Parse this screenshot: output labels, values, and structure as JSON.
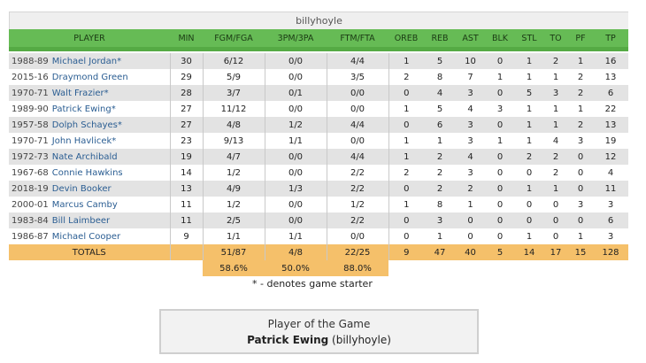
{
  "box_title": "billyhoyle",
  "headers": [
    "PLAYER",
    "MIN",
    "FGM/FGA",
    "3PM/3PA",
    "FTM/FTA",
    "OREB",
    "REB",
    "AST",
    "BLK",
    "STL",
    "TO",
    "PF",
    "TP"
  ],
  "players": [
    {
      "season": "1988-89",
      "name": "Michael Jordan*",
      "min": "30",
      "fg": "6/12",
      "tp3": "0/0",
      "ft": "4/4",
      "oreb": "1",
      "reb": "5",
      "ast": "10",
      "blk": "0",
      "stl": "1",
      "to": "2",
      "pf": "1",
      "tp": "16"
    },
    {
      "season": "2015-16",
      "name": "Draymond Green",
      "min": "29",
      "fg": "5/9",
      "tp3": "0/0",
      "ft": "3/5",
      "oreb": "2",
      "reb": "8",
      "ast": "7",
      "blk": "1",
      "stl": "1",
      "to": "1",
      "pf": "2",
      "tp": "13"
    },
    {
      "season": "1970-71",
      "name": "Walt Frazier*",
      "min": "28",
      "fg": "3/7",
      "tp3": "0/1",
      "ft": "0/0",
      "oreb": "0",
      "reb": "4",
      "ast": "3",
      "blk": "0",
      "stl": "5",
      "to": "3",
      "pf": "2",
      "tp": "6"
    },
    {
      "season": "1989-90",
      "name": "Patrick Ewing*",
      "min": "27",
      "fg": "11/12",
      "tp3": "0/0",
      "ft": "0/0",
      "oreb": "1",
      "reb": "5",
      "ast": "4",
      "blk": "3",
      "stl": "1",
      "to": "1",
      "pf": "1",
      "tp": "22"
    },
    {
      "season": "1957-58",
      "name": "Dolph Schayes*",
      "min": "27",
      "fg": "4/8",
      "tp3": "1/2",
      "ft": "4/4",
      "oreb": "0",
      "reb": "6",
      "ast": "3",
      "blk": "0",
      "stl": "1",
      "to": "1",
      "pf": "2",
      "tp": "13"
    },
    {
      "season": "1970-71",
      "name": "John Havlicek*",
      "min": "23",
      "fg": "9/13",
      "tp3": "1/1",
      "ft": "0/0",
      "oreb": "1",
      "reb": "1",
      "ast": "3",
      "blk": "1",
      "stl": "1",
      "to": "4",
      "pf": "3",
      "tp": "19"
    },
    {
      "season": "1972-73",
      "name": "Nate Archibald",
      "min": "19",
      "fg": "4/7",
      "tp3": "0/0",
      "ft": "4/4",
      "oreb": "1",
      "reb": "2",
      "ast": "4",
      "blk": "0",
      "stl": "2",
      "to": "2",
      "pf": "0",
      "tp": "12"
    },
    {
      "season": "1967-68",
      "name": "Connie Hawkins",
      "min": "14",
      "fg": "1/2",
      "tp3": "0/0",
      "ft": "2/2",
      "oreb": "2",
      "reb": "2",
      "ast": "3",
      "blk": "0",
      "stl": "0",
      "to": "2",
      "pf": "0",
      "tp": "4"
    },
    {
      "season": "2018-19",
      "name": "Devin Booker",
      "min": "13",
      "fg": "4/9",
      "tp3": "1/3",
      "ft": "2/2",
      "oreb": "0",
      "reb": "2",
      "ast": "2",
      "blk": "0",
      "stl": "1",
      "to": "1",
      "pf": "0",
      "tp": "11"
    },
    {
      "season": "2000-01",
      "name": "Marcus Camby",
      "min": "11",
      "fg": "1/2",
      "tp3": "0/0",
      "ft": "1/2",
      "oreb": "1",
      "reb": "8",
      "ast": "1",
      "blk": "0",
      "stl": "0",
      "to": "0",
      "pf": "3",
      "tp": "3"
    },
    {
      "season": "1983-84",
      "name": "Bill Laimbeer",
      "min": "11",
      "fg": "2/5",
      "tp3": "0/0",
      "ft": "2/2",
      "oreb": "0",
      "reb": "3",
      "ast": "0",
      "blk": "0",
      "stl": "0",
      "to": "0",
      "pf": "0",
      "tp": "6"
    },
    {
      "season": "1986-87",
      "name": "Michael Cooper",
      "min": "9",
      "fg": "1/1",
      "tp3": "1/1",
      "ft": "0/0",
      "oreb": "0",
      "reb": "1",
      "ast": "0",
      "blk": "0",
      "stl": "1",
      "to": "0",
      "pf": "1",
      "tp": "3"
    }
  ],
  "totals": {
    "label": "TOTALS",
    "min": "",
    "fg": "51/87",
    "tp3": "4/8",
    "ft": "22/25",
    "oreb": "9",
    "reb": "47",
    "ast": "40",
    "blk": "5",
    "stl": "14",
    "to": "17",
    "pf": "15",
    "tp": "128"
  },
  "percentages": {
    "fg": "58.6%",
    "tp3": "50.0%",
    "ft": "88.0%"
  },
  "footnote": "* - denotes game starter",
  "player_of_game": {
    "heading": "Player of the Game",
    "name": "Patrick Ewing",
    "team": "(billyhoyle)"
  },
  "colors": {
    "header_green": "#66bb55",
    "totals_orange": "#f5c06a",
    "link_blue": "#2a5d92",
    "row_gray": "#e3e3e3"
  }
}
